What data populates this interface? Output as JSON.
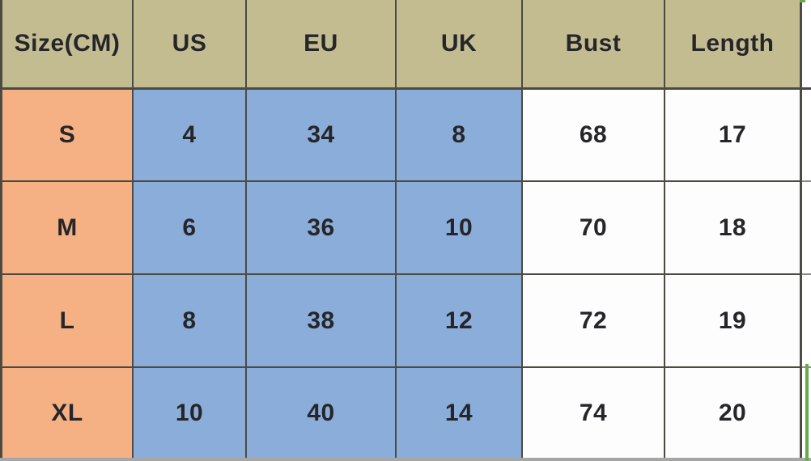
{
  "chart_data": {
    "type": "table",
    "columns": [
      "Size(CM)",
      "US",
      "EU",
      "UK",
      "Bust",
      "Length"
    ],
    "rows": [
      [
        "S",
        "4",
        "34",
        "8",
        "68",
        "17"
      ],
      [
        "M",
        "6",
        "36",
        "10",
        "70",
        "18"
      ],
      [
        "L",
        "8",
        "38",
        "12",
        "72",
        "19"
      ],
      [
        "XL",
        "10",
        "40",
        "14",
        "74",
        "20"
      ]
    ]
  },
  "colors": {
    "header_bg": "#c4bc91",
    "size_col_bg": "#f5b184",
    "intl_bg": "#8badd9",
    "white_bg": "#fdfdfd",
    "grid_line": "#4c4a43",
    "margin_line": "#8c8c8c",
    "bottom_band": "#a6a6a6",
    "accent_green": "#69aa4d",
    "text": "#26262a"
  }
}
